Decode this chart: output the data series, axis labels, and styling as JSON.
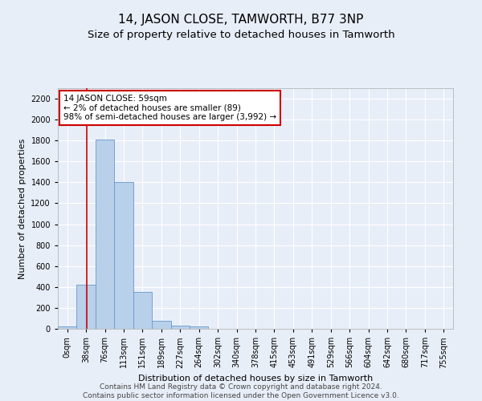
{
  "title": "14, JASON CLOSE, TAMWORTH, B77 3NP",
  "subtitle": "Size of property relative to detached houses in Tamworth",
  "xlabel": "Distribution of detached houses by size in Tamworth",
  "ylabel": "Number of detached properties",
  "footer_line1": "Contains HM Land Registry data © Crown copyright and database right 2024.",
  "footer_line2": "Contains public sector information licensed under the Open Government Licence v3.0.",
  "bin_labels": [
    "0sqm",
    "38sqm",
    "76sqm",
    "113sqm",
    "151sqm",
    "189sqm",
    "227sqm",
    "264sqm",
    "302sqm",
    "340sqm",
    "378sqm",
    "415sqm",
    "453sqm",
    "491sqm",
    "529sqm",
    "566sqm",
    "604sqm",
    "642sqm",
    "680sqm",
    "717sqm",
    "755sqm"
  ],
  "bar_values": [
    20,
    420,
    1810,
    1400,
    350,
    80,
    30,
    25,
    0,
    0,
    0,
    0,
    0,
    0,
    0,
    0,
    0,
    0,
    0,
    0,
    0
  ],
  "bar_color": "#b8d0ea",
  "bar_edge_color": "#6699cc",
  "vline_x": 1.55,
  "vline_color": "#cc0000",
  "annotation_text": "14 JASON CLOSE: 59sqm\n← 2% of detached houses are smaller (89)\n98% of semi-detached houses are larger (3,992) →",
  "annotation_box_color": "#ffffff",
  "annotation_box_edge": "#cc0000",
  "ylim": [
    0,
    2300
  ],
  "yticks": [
    0,
    200,
    400,
    600,
    800,
    1000,
    1200,
    1400,
    1600,
    1800,
    2000,
    2200
  ],
  "background_color": "#e8eef8",
  "grid_color": "#ffffff",
  "title_fontsize": 11,
  "subtitle_fontsize": 9.5,
  "axis_label_fontsize": 8,
  "tick_fontsize": 7,
  "footer_fontsize": 6.5
}
